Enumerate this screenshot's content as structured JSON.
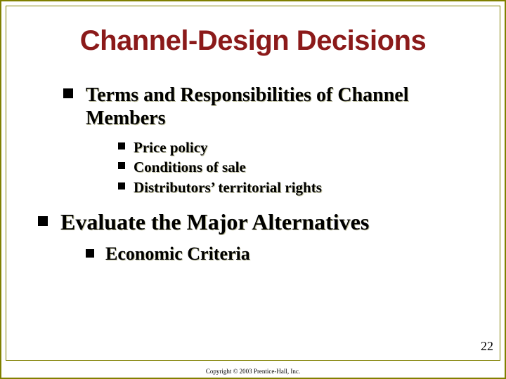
{
  "title": {
    "text": "Channel-Design Decisions",
    "color": "#8b1a1a",
    "fontsize": 40
  },
  "content": {
    "level1_items": [
      {
        "text": "Terms and Responsibilities of Channel Members",
        "children": [
          {
            "text": "Price policy"
          },
          {
            "text": "Conditions of sale"
          },
          {
            "text": "Distributors’ territorial rights"
          }
        ]
      }
    ],
    "evaluate": {
      "text": "Evaluate the Major Alternatives"
    },
    "sub_evaluate": {
      "text": "Economic Criteria"
    }
  },
  "page_number": "22",
  "copyright": "Copyright © 2003 Prentice-Hall, Inc.",
  "colors": {
    "border": "#808000",
    "bullet": "#000000",
    "text": "#000000",
    "shadow": "#c0c0a0"
  }
}
